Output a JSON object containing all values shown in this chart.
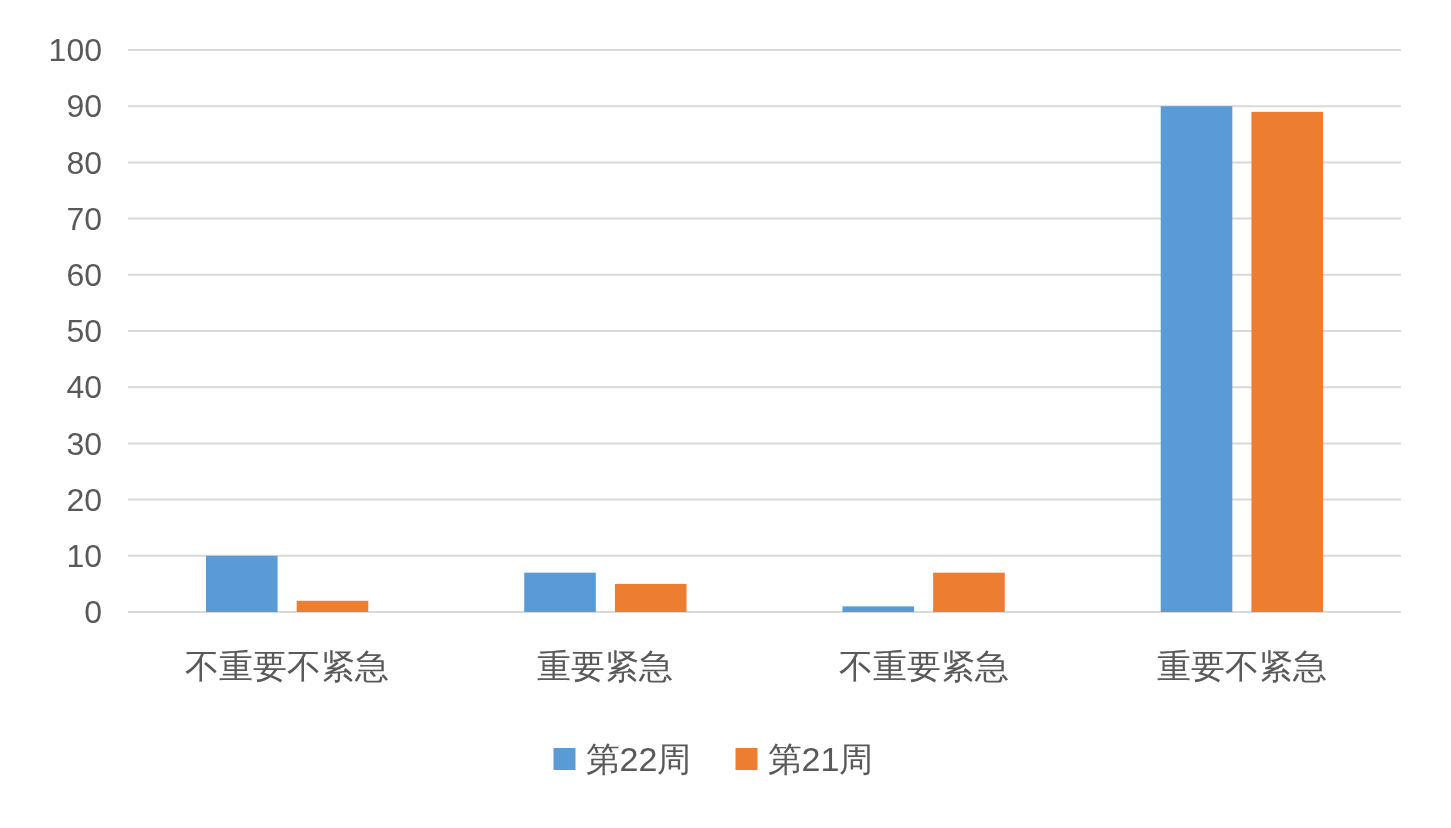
{
  "chart_data": {
    "type": "bar",
    "categories": [
      "不重要不紧急",
      "重要紧急",
      "不重要紧急",
      "重要不紧急"
    ],
    "series": [
      {
        "name": "第22周",
        "color": "#5b9bd5",
        "values": [
          10,
          7,
          1,
          90
        ]
      },
      {
        "name": "第21周",
        "color": "#ed7d31",
        "values": [
          2,
          5,
          7,
          89
        ]
      }
    ],
    "ylim": [
      0,
      100
    ],
    "yticks": [
      0,
      10,
      20,
      30,
      40,
      50,
      60,
      70,
      80,
      90,
      100
    ],
    "grid": "y",
    "legend": "bottom"
  }
}
